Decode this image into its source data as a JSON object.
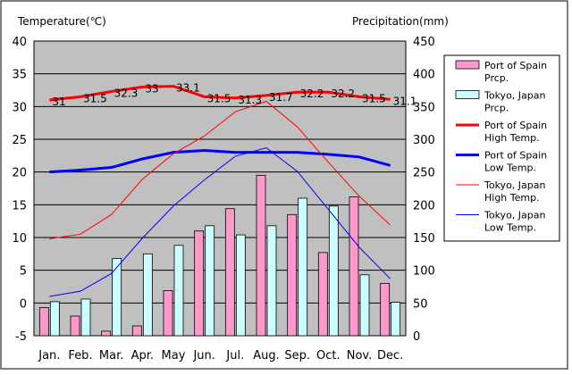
{
  "chart_data": {
    "type": "bar",
    "left_axis_title": "Temperature(℃)",
    "right_axis_title": "Precipitation(mm)",
    "categories": [
      "Jan.",
      "Feb.",
      "Mar.",
      "Apr.",
      "May",
      "Jun.",
      "Jul.",
      "Aug.",
      "Sep.",
      "Oct.",
      "Nov.",
      "Dec."
    ],
    "left_ticks": [
      "40",
      "35",
      "30",
      "25",
      "20",
      "15",
      "10",
      "5",
      "0",
      "-5"
    ],
    "right_ticks": [
      "450",
      "400",
      "350",
      "300",
      "250",
      "200",
      "150",
      "100",
      "50",
      "0"
    ],
    "ylim_left": [
      -5,
      40
    ],
    "ylim_right": [
      0,
      450
    ],
    "grid": "horizontal",
    "plot_background": "#c0c0c0",
    "legend_position": "right",
    "bar_series": [
      {
        "name": "Port of Spain\nPrcp.",
        "color": "#ff99cc",
        "values": [
          43,
          30,
          7,
          15,
          69,
          160,
          194,
          245,
          185,
          127,
          212,
          80
        ]
      },
      {
        "name": "Tokyo, Japan\nPrcp.",
        "color": "#ccffff",
        "values": [
          52,
          56,
          118,
          125,
          138,
          168,
          154,
          168,
          210,
          198,
          93,
          51
        ]
      }
    ],
    "line_series": [
      {
        "name": "Port of Spain\nHigh Temp.",
        "color": "#ff0000",
        "width": 3,
        "values": [
          31,
          31.5,
          32.3,
          33,
          33.1,
          31.5,
          31.3,
          31.7,
          32.2,
          32.2,
          31.5,
          31.1
        ]
      },
      {
        "name": "Port of Spain\nLow Temp.",
        "color": "#0000ff",
        "width": 3,
        "values": [
          20,
          20.3,
          20.7,
          22,
          23,
          23.3,
          23,
          23,
          23,
          22.7,
          22.3,
          21
        ]
      },
      {
        "name": "Tokyo, Japan\nHigh Temp.",
        "color": "#ff0000",
        "width": 1,
        "values": [
          9.8,
          10.5,
          13.5,
          18.9,
          22.8,
          25.5,
          29.2,
          30.8,
          26.9,
          21.5,
          16.3,
          11.9
        ]
      },
      {
        "name": "Tokyo, Japan\nLow Temp.",
        "color": "#0000ff",
        "width": 1,
        "values": [
          1,
          1.8,
          4.5,
          9.9,
          14.8,
          18.8,
          22.4,
          23.7,
          20.1,
          14.3,
          8.5,
          3.7
        ]
      }
    ],
    "data_labels": [
      "31",
      "31.5",
      "32.3",
      "33",
      "33.1",
      "31.5",
      "31.3",
      "31.7",
      "32.2",
      "32.2",
      "31.5",
      "31.1"
    ]
  }
}
